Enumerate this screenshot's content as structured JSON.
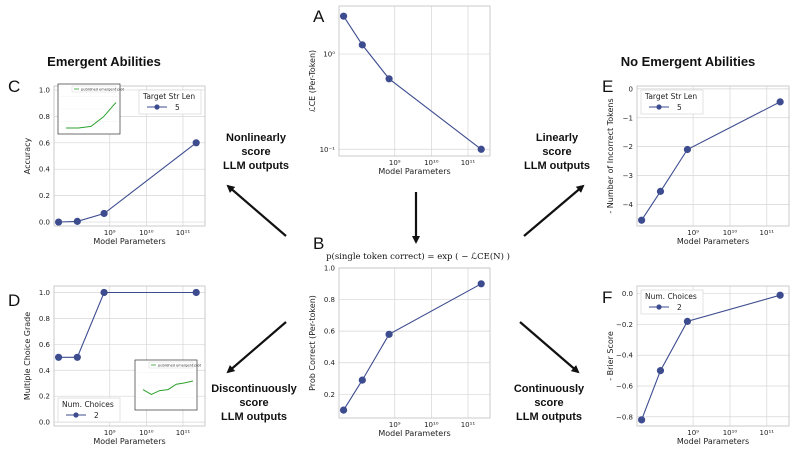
{
  "headings": {
    "left": "Emergent Abilities",
    "right": "No Emergent Abilities"
  },
  "captions": {
    "top_left": [
      "Nonlinearly",
      "score",
      "LLM outputs"
    ],
    "top_right": [
      "Linearly",
      "score",
      "LLM outputs"
    ],
    "bottom_left": [
      "Discontinuously",
      "score",
      "LLM outputs"
    ],
    "bottom_right": [
      "Continuously",
      "score",
      "LLM outputs"
    ]
  },
  "formula": "p(single token correct) = exp ( − ℒCE(N) )",
  "colors": {
    "series": "#3d4c8f",
    "inset_line": "#2ca02c",
    "grid": "#d6d6d6",
    "arrow": "#111111"
  },
  "chart_data": [
    {
      "id": "A",
      "letter": "A",
      "type": "line",
      "xlabel": "Model Parameters",
      "ylabel": "ℒCE (Per-Token)",
      "xscale": "log",
      "yscale": "log",
      "xlim": [
        30000000.0,
        400000000000.0
      ],
      "ylim": [
        0.085,
        3.2
      ],
      "xticks": [
        1000000000.0,
        10000000000.0,
        100000000000.0
      ],
      "xtick_labels": [
        "10⁹",
        "10¹⁰",
        "10¹¹"
      ],
      "yticks": [
        0.1,
        1
      ],
      "ytick_labels": [
        "10⁻¹",
        "10⁰"
      ],
      "x": [
        40000000.0,
        130000000.0,
        700000000.0,
        230000000000.0
      ],
      "y": [
        2.5,
        1.25,
        0.55,
        0.1
      ],
      "legend": null
    },
    {
      "id": "B",
      "letter": "B",
      "type": "line",
      "xlabel": "Model Parameters",
      "ylabel": "Prob Correct (Per-token)",
      "xscale": "log",
      "yscale": "linear",
      "xlim": [
        30000000.0,
        400000000000.0
      ],
      "ylim": [
        0.05,
        1.0
      ],
      "xticks": [
        1000000000.0,
        10000000000.0,
        100000000000.0
      ],
      "xtick_labels": [
        "10⁹",
        "10¹⁰",
        "10¹¹"
      ],
      "yticks": [
        0.2,
        0.4,
        0.6,
        0.8,
        1.0
      ],
      "ytick_labels": [
        "0.2",
        "0.4",
        "0.6",
        "0.8",
        "1.0"
      ],
      "x": [
        40000000.0,
        130000000.0,
        700000000.0,
        230000000000.0
      ],
      "y": [
        0.1,
        0.29,
        0.58,
        0.9
      ],
      "legend": null
    },
    {
      "id": "C",
      "letter": "C",
      "type": "line",
      "xlabel": "Model Parameters",
      "ylabel": "Accuracy",
      "xscale": "log",
      "yscale": "linear",
      "xlim": [
        30000000.0,
        400000000000.0
      ],
      "ylim": [
        -0.03,
        1.03
      ],
      "xticks": [
        1000000000.0,
        10000000000.0,
        100000000000.0
      ],
      "xtick_labels": [
        "10⁹",
        "10¹⁰",
        "10¹¹"
      ],
      "yticks": [
        0.0,
        0.2,
        0.4,
        0.6,
        0.8,
        1.0
      ],
      "ytick_labels": [
        "0.0",
        "0.2",
        "0.4",
        "0.6",
        "0.8",
        "1.0"
      ],
      "x": [
        40000000.0,
        130000000.0,
        700000000.0,
        230000000000.0
      ],
      "y": [
        0.0,
        0.005,
        0.065,
        0.6
      ],
      "legend": {
        "title": "Target Str Len",
        "entries": [
          "5"
        ],
        "placement": "top-right"
      },
      "inset": {
        "title": "published emergent plot",
        "placement": "top-left",
        "y": [
          0.0,
          0.0,
          0.05,
          0.35,
          0.8
        ],
        "yrange": [
          0,
          1
        ]
      }
    },
    {
      "id": "D",
      "letter": "D",
      "type": "line",
      "xlabel": "Model Parameters",
      "ylabel": "Multiple Choice Grade",
      "xscale": "log",
      "yscale": "linear",
      "xlim": [
        30000000.0,
        400000000000.0
      ],
      "ylim": [
        -0.03,
        1.05
      ],
      "xticks": [
        1000000000.0,
        10000000000.0,
        100000000000.0
      ],
      "xtick_labels": [
        "10⁹",
        "10¹⁰",
        "10¹¹"
      ],
      "yticks": [
        0.0,
        0.2,
        0.4,
        0.6,
        0.8,
        1.0
      ],
      "ytick_labels": [
        "0.0",
        "0.2",
        "0.4",
        "0.6",
        "0.8",
        "1.0"
      ],
      "x": [
        40000000.0,
        130000000.0,
        700000000.0,
        230000000000.0
      ],
      "y": [
        0.5,
        0.5,
        1.0,
        1.0
      ],
      "legend": {
        "title": "Num. Choices",
        "entries": [
          "2"
        ],
        "placement": "bottom-left"
      },
      "inset": {
        "title": "published emergent plot",
        "placement": "bottom-right",
        "y": [
          0.45,
          0.3,
          0.42,
          0.45,
          0.62,
          0.66,
          0.72
        ],
        "yrange": [
          0,
          1
        ]
      }
    },
    {
      "id": "E",
      "letter": "E",
      "type": "line",
      "xlabel": "Model Parameters",
      "ylabel": "- Number of Incorrect Tokens",
      "xscale": "log",
      "yscale": "linear",
      "xlim": [
        30000000.0,
        400000000000.0
      ],
      "ylim": [
        -4.75,
        0.1
      ],
      "xticks": [
        1000000000.0,
        10000000000.0,
        100000000000.0
      ],
      "xtick_labels": [
        "10⁹",
        "10¹⁰",
        "10¹¹"
      ],
      "yticks": [
        0,
        -1,
        -2,
        -3,
        -4
      ],
      "ytick_labels": [
        "0",
        "−1",
        "−2",
        "−3",
        "−4"
      ],
      "x": [
        40000000.0,
        130000000.0,
        700000000.0,
        230000000000.0
      ],
      "y": [
        -4.55,
        -3.55,
        -2.1,
        -0.45
      ],
      "legend": {
        "title": "Target Str Len",
        "entries": [
          "5"
        ],
        "placement": "top-left"
      }
    },
    {
      "id": "F",
      "letter": "F",
      "type": "line",
      "xlabel": "Model Parameters",
      "ylabel": "- Brier Score",
      "xscale": "log",
      "yscale": "linear",
      "xlim": [
        30000000.0,
        400000000000.0
      ],
      "ylim": [
        -0.86,
        0.05
      ],
      "xticks": [
        1000000000.0,
        10000000000.0,
        100000000000.0
      ],
      "xtick_labels": [
        "10⁹",
        "10¹⁰",
        "10¹¹"
      ],
      "yticks": [
        0.0,
        -0.2,
        -0.4,
        -0.6,
        -0.8
      ],
      "ytick_labels": [
        "0.0",
        "−0.2",
        "−0.4",
        "−0.6",
        "−0.8"
      ],
      "x": [
        40000000.0,
        130000000.0,
        700000000.0,
        230000000000.0
      ],
      "y": [
        -0.82,
        -0.5,
        -0.18,
        -0.01
      ],
      "legend": {
        "title": "Num. Choices",
        "entries": [
          "2"
        ],
        "placement": "top-left"
      }
    }
  ]
}
